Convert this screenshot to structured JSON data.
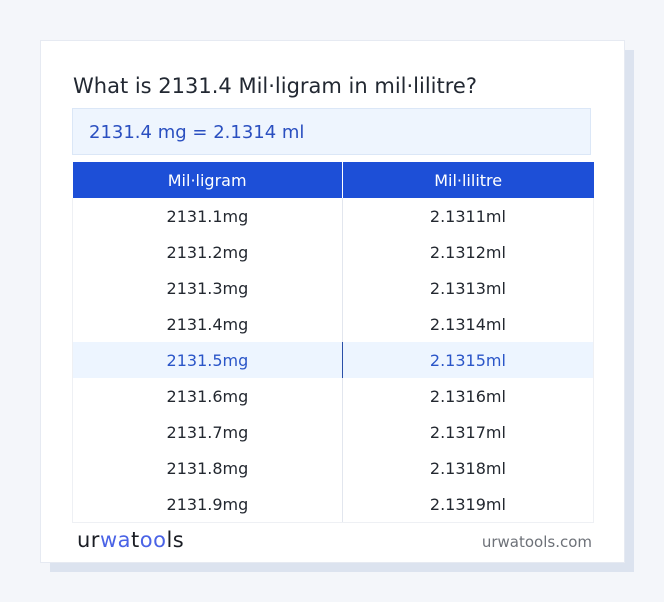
{
  "title": "What is 2131.4 Mil·ligram in mil·lilitre?",
  "result": "2131.4 mg = 2.1314 ml",
  "table": {
    "headers": [
      "Mil·ligram",
      "Mil·lilitre"
    ],
    "rows": [
      [
        "2131.1mg",
        "2.1311ml"
      ],
      [
        "2131.2mg",
        "2.1312ml"
      ],
      [
        "2131.3mg",
        "2.1313ml"
      ],
      [
        "2131.4mg",
        "2.1314ml"
      ],
      [
        "2131.5mg",
        "2.1315ml"
      ],
      [
        "2131.6mg",
        "2.1316ml"
      ],
      [
        "2131.7mg",
        "2.1317ml"
      ],
      [
        "2131.8mg",
        "2.1318ml"
      ],
      [
        "2131.9mg",
        "2.1319ml"
      ]
    ],
    "highlighted_row": 4
  },
  "footer": {
    "logo": {
      "text": "urwatools",
      "parts": [
        "ur",
        "wa",
        "t",
        "oo",
        "ls"
      ]
    },
    "site": "urwatools.com"
  },
  "colors": {
    "accent": "#1d4fd7",
    "highlight_bg": "#edf5ff",
    "logo_blue": "#4a63e6"
  }
}
